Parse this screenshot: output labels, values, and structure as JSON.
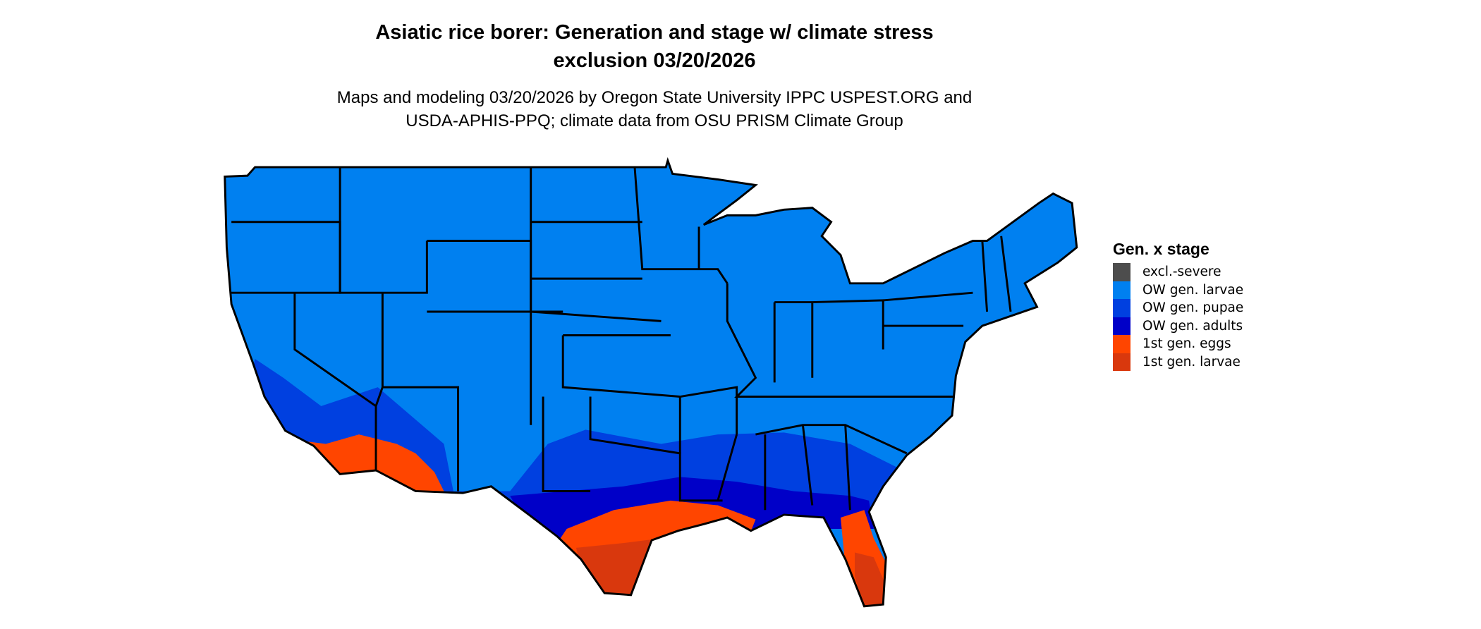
{
  "title_line1": "Asiatic rice borer: Generation and stage w/ climate stress",
  "title_line2": "exclusion 03/20/2026",
  "subtitle_line1": "Maps and modeling 03/20/2026 by Oregon State University IPPC USPEST.ORG and",
  "subtitle_line2": "USDA-APHIS-PPQ; climate data from OSU PRISM Climate Group",
  "legend": {
    "title": "Gen. x stage",
    "items": [
      {
        "label": "excl.-severe",
        "color": "#4d4d4d"
      },
      {
        "label": "OW gen. larvae",
        "color": "#0080f0"
      },
      {
        "label": "OW gen. pupae",
        "color": "#0040e0"
      },
      {
        "label": "OW gen. adults",
        "color": "#0000c8"
      },
      {
        "label": "1st gen. eggs",
        "color": "#ff4500"
      },
      {
        "label": "1st gen. larvae",
        "color": "#d9380d"
      }
    ]
  }
}
